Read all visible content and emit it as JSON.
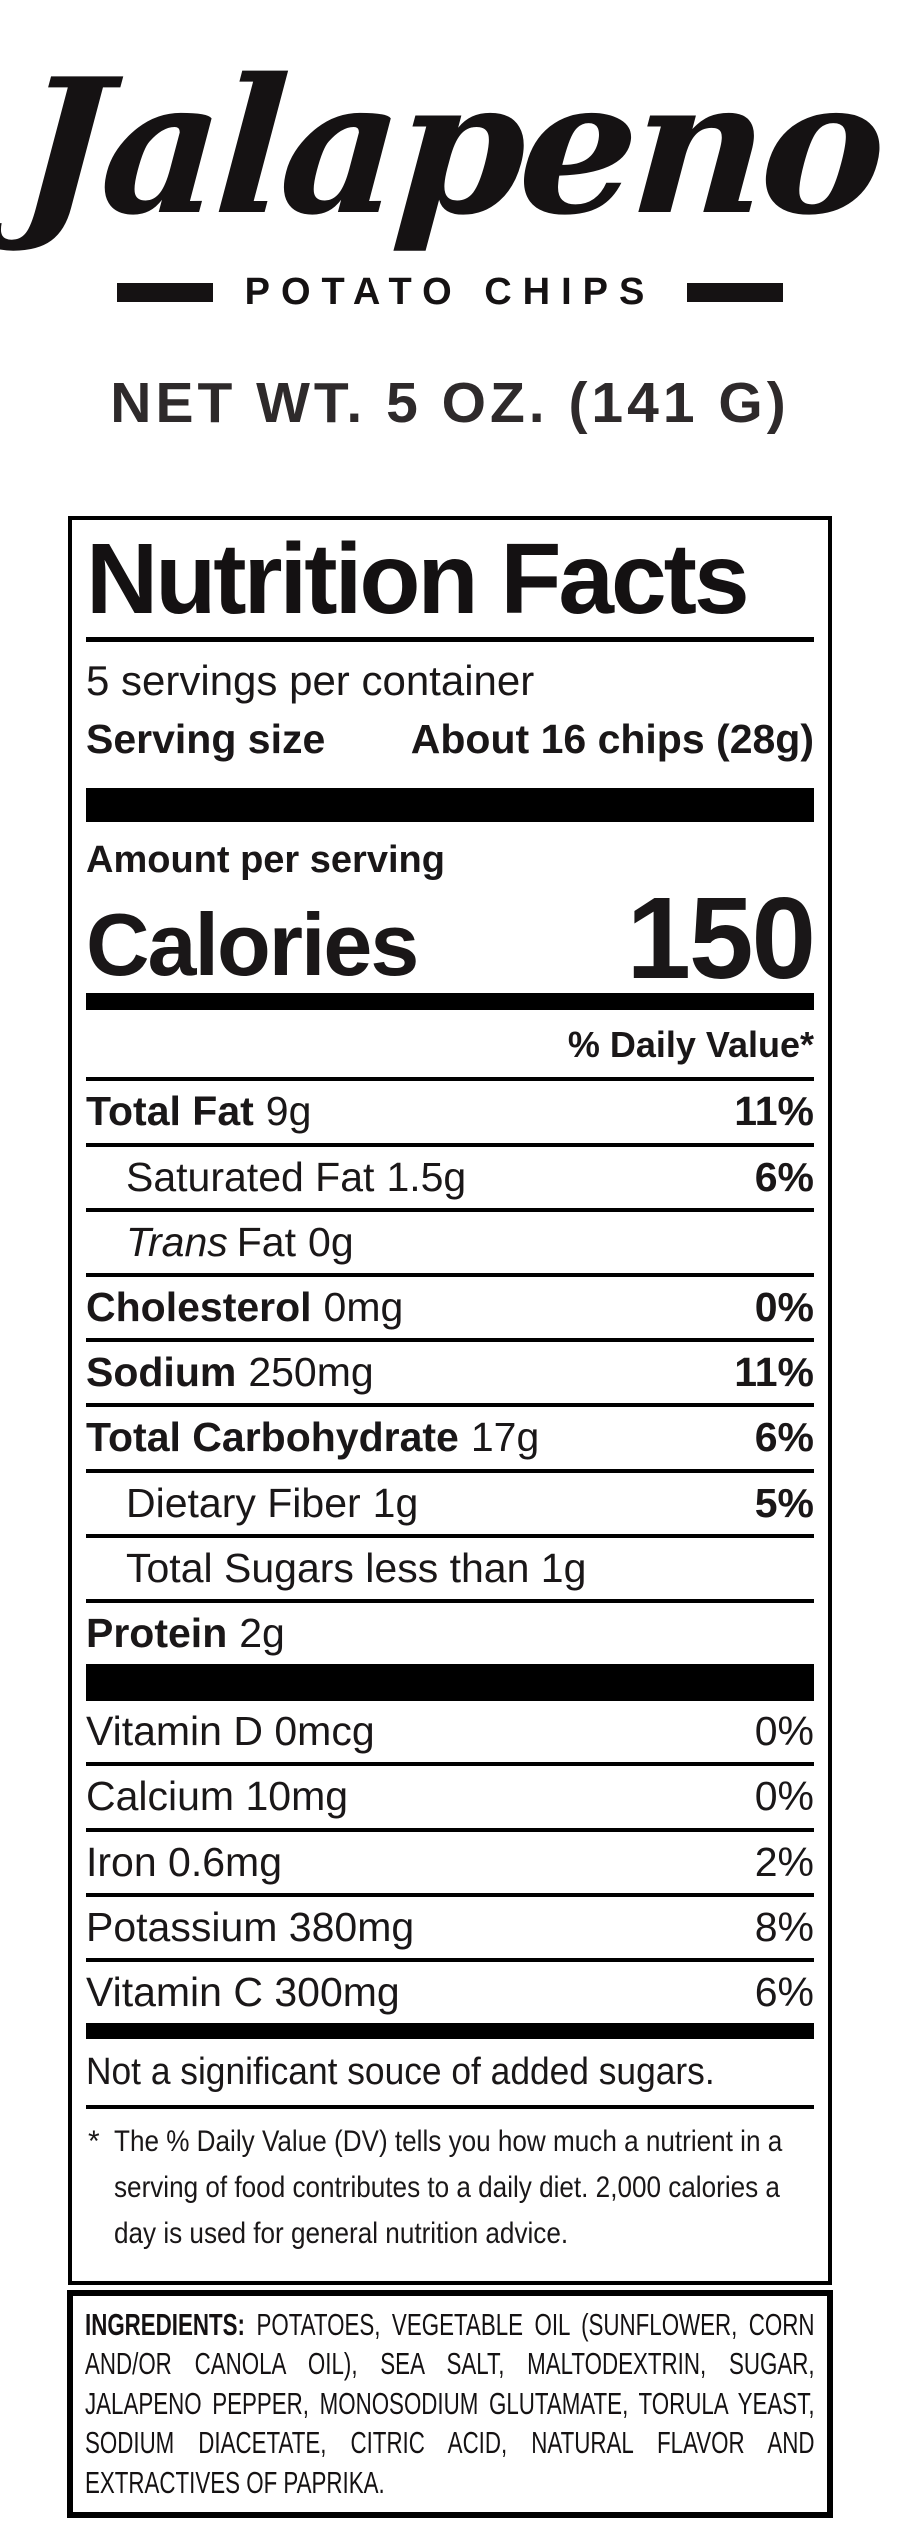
{
  "brand": {
    "product_name": "Jalapeno",
    "subtitle": "POTATO CHIPS",
    "net_weight": "NET WT. 5 OZ. (141 G)"
  },
  "nutrition": {
    "title": "Nutrition Facts",
    "servings_per_container": "5 servings per container",
    "serving_size_label": "Serving size",
    "serving_size_value": "About 16 chips (28g)",
    "amount_per_serving": "Amount per serving",
    "calories_label": "Calories",
    "calories_value": "150",
    "daily_value_header": "% Daily Value*",
    "rows": [
      {
        "label": "Total Fat",
        "amount": "9g",
        "dv": "11%"
      },
      {
        "label": "Saturated Fat",
        "amount": "1.5g",
        "dv": "6%"
      },
      {
        "label_italic": "Trans",
        "label": "Fat",
        "amount": "0g",
        "dv": ""
      },
      {
        "label": "Cholesterol",
        "amount": "0mg",
        "dv": "0%"
      },
      {
        "label": "Sodium",
        "amount": "250mg",
        "dv": "11%"
      },
      {
        "label": "Total Carbohydrate",
        "amount": "17g",
        "dv": "6%"
      },
      {
        "label": "Dietary Fiber",
        "amount": "1g",
        "dv": "5%"
      },
      {
        "label": "Total Sugars less than 1g",
        "amount": "",
        "dv": ""
      },
      {
        "label": "Protein",
        "amount": "2g",
        "dv": ""
      }
    ],
    "vitamins": [
      {
        "label": "Vitamin D 0mcg",
        "dv": "0%"
      },
      {
        "label": "Calcium 10mg",
        "dv": "0%"
      },
      {
        "label": "Iron 0.6mg",
        "dv": "2%"
      },
      {
        "label": "Potassium 380mg",
        "dv": "8%"
      },
      {
        "label": "Vitamin C 300mg",
        "dv": "6%"
      }
    ],
    "added_sugars_note": "Not a significant souce of added sugars.",
    "footnote_marker": "*",
    "footnote": "The % Daily Value (DV) tells you how much a nutrient in a serving of food contributes to a daily diet. 2,000 calories a day is used for general nutrition advice."
  },
  "ingredients": {
    "label": "INGREDIENTS:",
    "text": " POTATOES, VEGETABLE OIL (SUNFLOWER, CORN AND/OR CANOLA OIL), SEA SALT, MALTODEXTRIN, SUGAR, JALAPENO PEPPER, MONOSODIUM GLUTAMATE, TORULA YEAST, SODIUM DIACETATE, CITRIC ACID, NATURAL FLAVOR AND EXTRACTIVES OF PAPRIKA."
  },
  "colors": {
    "text": "#1a1718",
    "bar": "#000000"
  }
}
